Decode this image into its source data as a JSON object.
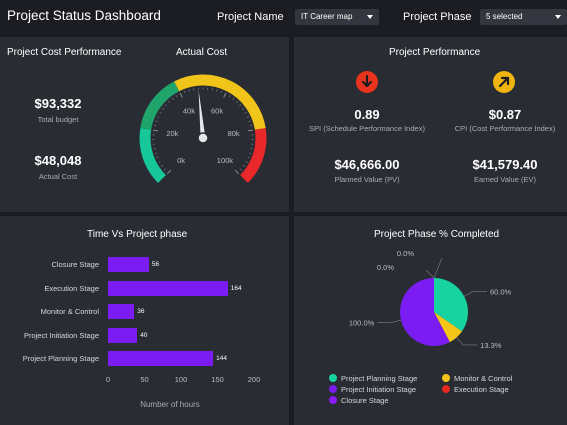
{
  "header": {
    "title": "Project Status Dashboard",
    "project_name_label": "Project Name",
    "project_name_value": "IT Career map",
    "project_phase_label": "Project Phase",
    "project_phase_value": "5 selected"
  },
  "cost_panel": {
    "title": "Project Cost Performance",
    "gauge_title": "Actual Cost",
    "total_budget_value": "$93,332",
    "total_budget_label": "Total budget",
    "actual_cost_value": "$48,048",
    "actual_cost_label": "Actual Cost",
    "gauge": {
      "value": 48048,
      "min": 0,
      "max": 100000,
      "ticks": [
        "0k",
        "20k",
        "40k",
        "60k",
        "80k",
        "100k"
      ],
      "band_colors": [
        "#16c79a",
        "#1fa46b",
        "#f0c419",
        "#e8282b"
      ]
    }
  },
  "performance_panel": {
    "title": "Project Performance",
    "spi_value": "0.89",
    "spi_label": "SPI (Schedule Performance Index)",
    "spi_icon": "arrow-down-icon",
    "spi_icon_color": "#e8341c",
    "cpi_value": "$0.87",
    "cpi_label": "CPI (Cost Performance Index)",
    "cpi_icon": "arrow-up-right-icon",
    "cpi_icon_color": "#f0b40e",
    "pv_value": "$46,666.00",
    "pv_label": "Planned Value (PV)",
    "ev_value": "$41,579.40",
    "ev_label": "Earned Value (EV)"
  },
  "time_panel": {
    "title": "Time Vs Project phase",
    "xlabel": "Number of hours",
    "ticks": [
      "0",
      "50",
      "100",
      "150",
      "200"
    ]
  },
  "phase_panel": {
    "title": "Project Phase % Completed"
  },
  "chart_data": [
    {
      "type": "bar",
      "title": "Time Vs Project phase",
      "xlabel": "Number of hours",
      "ylabel": "",
      "orientation": "horizontal",
      "categories": [
        "Closure Stage",
        "Execution Stage",
        "Monitor & Control",
        "Project Initiation Stage",
        "Project Planning Stage"
      ],
      "values": [
        56,
        164,
        36,
        40,
        144
      ],
      "xlim": [
        0,
        200
      ],
      "color": "#7b1cf2"
    },
    {
      "type": "pie",
      "title": "Project Phase % Completed",
      "labels": [
        "Project Planning Stage",
        "Monitor & Control",
        "Project Initiation Stage",
        "Execution Stage",
        "Closure Stage"
      ],
      "values": [
        60.0,
        13.3,
        100.0,
        0.0,
        0.0
      ],
      "value_labels": [
        "60.0%",
        "13.3%",
        "100.0%",
        "0.0%",
        "0.0%"
      ],
      "colors": [
        "#16d3a0",
        "#f5c518",
        "#7b1cf2",
        "#e8281e",
        "#8a1df5"
      ],
      "legend": "bottom"
    }
  ]
}
